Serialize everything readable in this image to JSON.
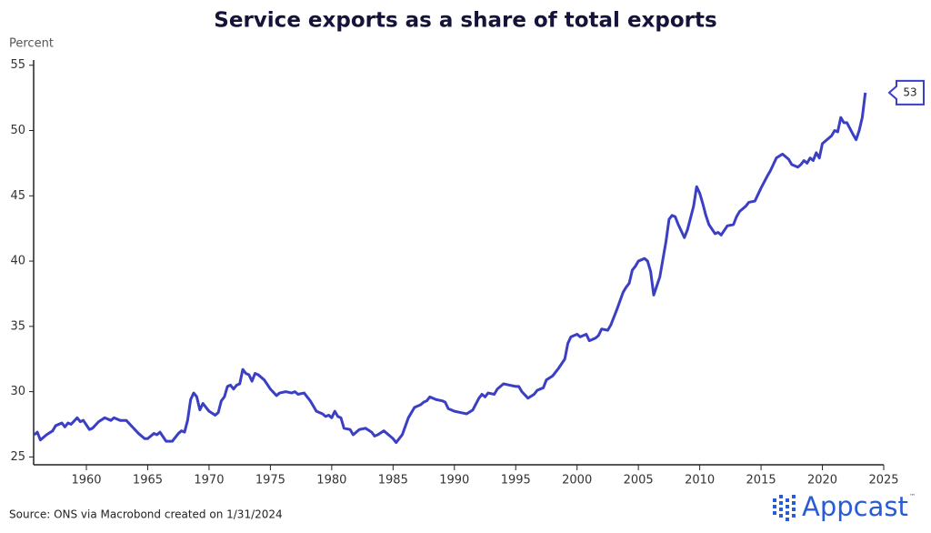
{
  "chart_data": {
    "type": "line",
    "title": "Service exports as a share of total exports",
    "y_label": "Percent",
    "source": "Source: ONS via Macrobond created on 1/31/2024",
    "logo": "Appcast",
    "logo_mark": "™",
    "xlim": [
      1955.7,
      2025
    ],
    "xticks": [
      1960,
      1965,
      1970,
      1975,
      1980,
      1985,
      1990,
      1995,
      2000,
      2005,
      2010,
      2015,
      2020,
      2025
    ],
    "ylim": [
      24.4,
      55.4
    ],
    "yticks": [
      25,
      30,
      35,
      40,
      45,
      50,
      55
    ],
    "grid": false,
    "x": [
      1955.75,
      1956,
      1956.25,
      1956.75,
      1957.25,
      1957.5,
      1958,
      1958.25,
      1958.5,
      1958.75,
      1959.25,
      1959.5,
      1959.75,
      1960.25,
      1960.5,
      1961,
      1961.5,
      1962,
      1962.25,
      1962.75,
      1963.25,
      1963.75,
      1964.25,
      1964.75,
      1965,
      1965.5,
      1965.75,
      1966,
      1966.5,
      1967,
      1967.5,
      1967.75,
      1968,
      1968.25,
      1968.5,
      1968.75,
      1969,
      1969.25,
      1969.5,
      1970,
      1970.5,
      1970.75,
      1971,
      1971.25,
      1971.5,
      1971.75,
      1972,
      1972.25,
      1972.5,
      1972.75,
      1973,
      1973.25,
      1973.5,
      1973.75,
      1974,
      1974.5,
      1975,
      1975.5,
      1975.75,
      1976.25,
      1976.75,
      1977,
      1977.25,
      1977.75,
      1978.25,
      1978.75,
      1979.25,
      1979.5,
      1979.75,
      1980,
      1980.25,
      1980.5,
      1980.75,
      1981,
      1981.5,
      1981.75,
      1982.25,
      1982.75,
      1983.25,
      1983.5,
      1983.75,
      1984.25,
      1984.75,
      1985,
      1985.25,
      1985.75,
      1986.25,
      1986.75,
      1987.25,
      1987.5,
      1987.75,
      1988,
      1988.5,
      1989,
      1989.25,
      1989.5,
      1990,
      1990.5,
      1991,
      1991.5,
      1992,
      1992.25,
      1992.5,
      1992.75,
      1993.25,
      1993.5,
      1994,
      1994.5,
      1995,
      1995.25,
      1995.5,
      1996,
      1996.5,
      1996.75,
      1997.25,
      1997.5,
      1998,
      1998.5,
      1999,
      1999.25,
      1999.5,
      2000,
      2000.25,
      2000.75,
      2001,
      2001.5,
      2001.75,
      2002,
      2002.5,
      2002.75,
      2003.25,
      2003.75,
      2004,
      2004.25,
      2004.5,
      2004.75,
      2005,
      2005.5,
      2005.75,
      2006,
      2006.25,
      2006.75,
      2007.25,
      2007.5,
      2007.75,
      2008,
      2008.25,
      2008.75,
      2009,
      2009.5,
      2009.75,
      2010,
      2010.25,
      2010.5,
      2010.75,
      2011.25,
      2011.5,
      2011.75,
      2012.25,
      2012.75,
      2013,
      2013.25,
      2013.75,
      2014,
      2014.5,
      2015,
      2015.5,
      2015.75,
      2016,
      2016.25,
      2016.75,
      2017.25,
      2017.5,
      2018,
      2018.25,
      2018.5,
      2018.75,
      2019,
      2019.25,
      2019.5,
      2019.75,
      2020,
      2020.25,
      2020.75,
      2021,
      2021.25,
      2021.5,
      2021.75,
      2022,
      2022.5,
      2022.75,
      2023,
      2023.25,
      2023.5
    ],
    "series": [
      {
        "color": "#3b3fc4",
        "values": [
          26.7,
          26.9,
          26.3,
          26.7,
          27.0,
          27.4,
          27.6,
          27.3,
          27.6,
          27.5,
          28.0,
          27.7,
          27.8,
          27.1,
          27.2,
          27.7,
          28.0,
          27.8,
          28.0,
          27.8,
          27.8,
          27.3,
          26.8,
          26.4,
          26.4,
          26.8,
          26.7,
          26.9,
          26.2,
          26.2,
          26.8,
          27.0,
          26.9,
          27.8,
          29.4,
          29.9,
          29.6,
          28.6,
          29.1,
          28.5,
          28.2,
          28.4,
          29.3,
          29.6,
          30.4,
          30.5,
          30.2,
          30.5,
          30.6,
          31.7,
          31.4,
          31.3,
          30.8,
          31.4,
          31.3,
          30.9,
          30.2,
          29.7,
          29.9,
          30.0,
          29.9,
          30.0,
          29.8,
          29.9,
          29.3,
          28.5,
          28.3,
          28.1,
          28.2,
          28.0,
          28.5,
          28.1,
          28.0,
          27.2,
          27.1,
          26.7,
          27.1,
          27.2,
          26.9,
          26.6,
          26.7,
          27.0,
          26.6,
          26.4,
          26.1,
          26.7,
          28.0,
          28.8,
          29.0,
          29.2,
          29.3,
          29.6,
          29.4,
          29.3,
          29.2,
          28.7,
          28.5,
          28.4,
          28.3,
          28.6,
          29.5,
          29.8,
          29.6,
          29.9,
          29.8,
          30.2,
          30.6,
          30.5,
          30.4,
          30.4,
          30.0,
          29.5,
          29.8,
          30.1,
          30.3,
          30.9,
          31.2,
          31.8,
          32.5,
          33.7,
          34.2,
          34.4,
          34.2,
          34.4,
          33.9,
          34.1,
          34.3,
          34.8,
          34.7,
          35.1,
          36.3,
          37.6,
          38.0,
          38.3,
          39.3,
          39.6,
          40.0,
          40.2,
          40.0,
          39.2,
          37.4,
          38.8,
          41.5,
          43.2,
          43.5,
          43.4,
          42.8,
          41.8,
          42.4,
          44.2,
          45.7,
          45.2,
          44.4,
          43.5,
          42.8,
          42.1,
          42.2,
          42.0,
          42.7,
          42.8,
          43.4,
          43.8,
          44.2,
          44.5,
          44.6,
          45.6,
          46.5,
          46.9,
          47.4,
          47.9,
          48.2,
          47.8,
          47.4,
          47.2,
          47.4,
          47.7,
          47.5,
          47.9,
          47.7,
          48.3,
          47.9,
          49.0,
          49.2,
          49.6,
          50.0,
          49.9,
          51.0,
          50.6,
          50.6,
          49.7,
          49.3,
          50.0,
          51.0,
          52.9
        ],
        "value_labels": [
          null,
          null,
          null,
          null,
          null,
          null,
          null,
          null,
          null,
          null,
          null,
          null,
          null,
          null,
          null,
          null,
          null,
          null,
          null,
          null,
          null,
          null,
          null,
          null,
          null,
          null,
          null,
          null,
          null,
          null,
          null,
          null,
          null,
          null,
          null,
          null,
          null,
          null,
          null,
          null,
          null,
          null,
          null,
          null,
          null,
          null,
          null,
          null,
          null,
          null,
          null,
          null,
          null,
          null,
          null,
          null,
          null,
          null,
          null,
          null,
          null,
          null,
          null,
          null,
          null,
          null,
          null,
          null,
          null,
          null,
          null,
          null,
          null,
          null,
          null,
          null,
          null,
          null,
          null,
          null,
          null,
          null,
          null,
          null,
          null,
          null,
          null,
          null,
          null,
          null,
          null,
          null,
          null,
          null,
          null,
          null,
          null,
          null,
          null,
          null,
          null,
          null,
          null,
          null,
          null,
          null,
          null,
          null,
          null,
          null,
          null,
          null,
          null,
          null,
          null,
          null,
          null,
          null,
          null,
          null,
          null,
          null,
          null,
          null,
          null,
          null,
          null,
          null,
          null,
          null,
          null,
          null,
          null,
          null,
          null,
          null,
          null,
          null,
          null,
          null,
          null,
          null,
          null,
          null,
          null,
          null,
          null,
          null,
          null,
          null,
          null,
          null,
          null,
          null,
          null,
          null,
          null,
          null,
          null,
          null,
          null,
          null,
          null,
          null,
          null,
          null,
          null,
          null,
          null,
          null,
          null,
          null,
          null,
          null,
          null,
          null,
          null,
          null,
          null,
          null,
          null,
          null,
          null,
          null,
          null,
          null,
          null,
          null,
          null,
          null,
          null,
          null,
          null,
          "53"
        ]
      }
    ]
  }
}
